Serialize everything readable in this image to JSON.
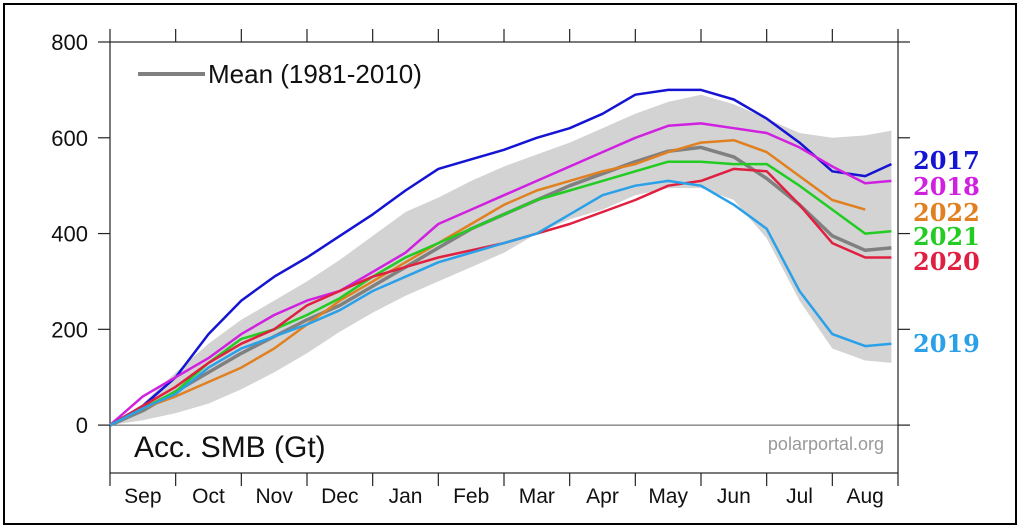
{
  "chart_data": {
    "type": "line",
    "ylabel": "Acc. SMB (Gt)",
    "credit": "polarportal.org",
    "ylim": [
      -100,
      800
    ],
    "y_ticks": [
      0,
      200,
      400,
      600,
      800
    ],
    "months": [
      "Sep",
      "Oct",
      "Nov",
      "Dec",
      "Jan",
      "Feb",
      "Mar",
      "Apr",
      "May",
      "Jun",
      "Jul",
      "Aug"
    ],
    "legend_position": "top-left",
    "mean": {
      "name": "Mean (1981-2010)",
      "color": "#808080",
      "points": [
        [
          0,
          0
        ],
        [
          0.5,
          30
        ],
        [
          1,
          70
        ],
        [
          1.5,
          110
        ],
        [
          2,
          150
        ],
        [
          2.5,
          185
        ],
        [
          3,
          220
        ],
        [
          3.5,
          250
        ],
        [
          4,
          290
        ],
        [
          4.5,
          330
        ],
        [
          5,
          370
        ],
        [
          5.5,
          410
        ],
        [
          6,
          440
        ],
        [
          6.5,
          470
        ],
        [
          7,
          500
        ],
        [
          7.5,
          525
        ],
        [
          8,
          550
        ],
        [
          8.5,
          572
        ],
        [
          9,
          580
        ],
        [
          9.5,
          560
        ],
        [
          10,
          515
        ],
        [
          10.5,
          460
        ],
        [
          11,
          395
        ],
        [
          11.5,
          365
        ],
        [
          11.9,
          370
        ]
      ]
    },
    "envelope": {
      "color": "#d3d3d3",
      "upper": [
        [
          0,
          0
        ],
        [
          0.5,
          45
        ],
        [
          1,
          110
        ],
        [
          1.5,
          170
        ],
        [
          2,
          220
        ],
        [
          2.5,
          260
        ],
        [
          3,
          300
        ],
        [
          3.5,
          345
        ],
        [
          4,
          395
        ],
        [
          4.5,
          445
        ],
        [
          5,
          475
        ],
        [
          5.5,
          510
        ],
        [
          6,
          540
        ],
        [
          6.5,
          565
        ],
        [
          7,
          590
        ],
        [
          7.5,
          620
        ],
        [
          8,
          650
        ],
        [
          8.5,
          675
        ],
        [
          9,
          690
        ],
        [
          9.5,
          670
        ],
        [
          10,
          640
        ],
        [
          10.5,
          610
        ],
        [
          11,
          600
        ],
        [
          11.5,
          605
        ],
        [
          11.9,
          615
        ]
      ],
      "lower": [
        [
          11.9,
          130
        ],
        [
          11.5,
          135
        ],
        [
          11,
          160
        ],
        [
          10.5,
          260
        ],
        [
          10,
          390
        ],
        [
          9.5,
          470
        ],
        [
          9,
          495
        ],
        [
          8.5,
          495
        ],
        [
          8,
          480
        ],
        [
          7.5,
          450
        ],
        [
          7,
          430
        ],
        [
          6.5,
          400
        ],
        [
          6,
          360
        ],
        [
          5.5,
          330
        ],
        [
          5,
          300
        ],
        [
          4.5,
          270
        ],
        [
          4,
          235
        ],
        [
          3.5,
          195
        ],
        [
          3,
          150
        ],
        [
          2.5,
          110
        ],
        [
          2,
          75
        ],
        [
          1.5,
          45
        ],
        [
          1,
          25
        ],
        [
          0.5,
          10
        ],
        [
          0,
          0
        ]
      ]
    },
    "series": [
      {
        "name": "2017",
        "color": "#1414d2",
        "points": [
          [
            0,
            0
          ],
          [
            0.5,
            40
          ],
          [
            1,
            100
          ],
          [
            1.5,
            190
          ],
          [
            2,
            260
          ],
          [
            2.5,
            310
          ],
          [
            3,
            350
          ],
          [
            3.5,
            395
          ],
          [
            4,
            440
          ],
          [
            4.5,
            490
          ],
          [
            5,
            535
          ],
          [
            5.5,
            555
          ],
          [
            6,
            575
          ],
          [
            6.5,
            600
          ],
          [
            7,
            620
          ],
          [
            7.5,
            650
          ],
          [
            8,
            690
          ],
          [
            8.5,
            700
          ],
          [
            9,
            700
          ],
          [
            9.5,
            680
          ],
          [
            10,
            640
          ],
          [
            10.5,
            590
          ],
          [
            11,
            530
          ],
          [
            11.5,
            520
          ],
          [
            11.9,
            545
          ]
        ]
      },
      {
        "name": "2018",
        "color": "#d020e0",
        "points": [
          [
            0,
            0
          ],
          [
            0.5,
            60
          ],
          [
            1,
            100
          ],
          [
            1.5,
            140
          ],
          [
            2,
            190
          ],
          [
            2.5,
            230
          ],
          [
            3,
            260
          ],
          [
            3.5,
            280
          ],
          [
            4,
            320
          ],
          [
            4.5,
            360
          ],
          [
            5,
            420
          ],
          [
            5.5,
            450
          ],
          [
            6,
            480
          ],
          [
            6.5,
            510
          ],
          [
            7,
            540
          ],
          [
            7.5,
            570
          ],
          [
            8,
            600
          ],
          [
            8.5,
            625
          ],
          [
            9,
            630
          ],
          [
            9.5,
            620
          ],
          [
            10,
            610
          ],
          [
            10.5,
            580
          ],
          [
            11,
            540
          ],
          [
            11.5,
            505
          ],
          [
            11.9,
            510
          ]
        ]
      },
      {
        "name": "2022",
        "color": "#e08020",
        "points": [
          [
            0,
            0
          ],
          [
            0.5,
            35
          ],
          [
            1,
            60
          ],
          [
            1.5,
            90
          ],
          [
            2,
            120
          ],
          [
            2.5,
            160
          ],
          [
            3,
            210
          ],
          [
            3.5,
            260
          ],
          [
            4,
            300
          ],
          [
            4.5,
            340
          ],
          [
            5,
            380
          ],
          [
            5.5,
            420
          ],
          [
            6,
            460
          ],
          [
            6.5,
            490
          ],
          [
            7,
            510
          ],
          [
            7.5,
            530
          ],
          [
            8,
            545
          ],
          [
            8.5,
            570
          ],
          [
            9,
            590
          ],
          [
            9.5,
            595
          ],
          [
            10,
            570
          ],
          [
            10.5,
            520
          ],
          [
            11,
            470
          ],
          [
            11.5,
            450
          ]
        ]
      },
      {
        "name": "2021",
        "color": "#22cc22",
        "points": [
          [
            0,
            0
          ],
          [
            0.5,
            35
          ],
          [
            1,
            70
          ],
          [
            1.5,
            130
          ],
          [
            2,
            180
          ],
          [
            2.5,
            200
          ],
          [
            3,
            230
          ],
          [
            3.5,
            265
          ],
          [
            4,
            310
          ],
          [
            4.5,
            350
          ],
          [
            5,
            380
          ],
          [
            5.5,
            410
          ],
          [
            6,
            440
          ],
          [
            6.5,
            470
          ],
          [
            7,
            490
          ],
          [
            7.5,
            510
          ],
          [
            8,
            530
          ],
          [
            8.5,
            550
          ],
          [
            9,
            550
          ],
          [
            9.5,
            545
          ],
          [
            10,
            545
          ],
          [
            10.5,
            500
          ],
          [
            11,
            450
          ],
          [
            11.5,
            400
          ],
          [
            11.9,
            405
          ]
        ]
      },
      {
        "name": "2020",
        "color": "#e02040",
        "points": [
          [
            0,
            0
          ],
          [
            0.5,
            40
          ],
          [
            1,
            80
          ],
          [
            1.5,
            130
          ],
          [
            2,
            170
          ],
          [
            2.5,
            200
          ],
          [
            3,
            250
          ],
          [
            3.5,
            280
          ],
          [
            4,
            310
          ],
          [
            4.5,
            330
          ],
          [
            5,
            350
          ],
          [
            5.5,
            365
          ],
          [
            6,
            380
          ],
          [
            6.5,
            400
          ],
          [
            7,
            420
          ],
          [
            7.5,
            445
          ],
          [
            8,
            470
          ],
          [
            8.5,
            500
          ],
          [
            9,
            510
          ],
          [
            9.5,
            535
          ],
          [
            10,
            530
          ],
          [
            10.5,
            460
          ],
          [
            11,
            380
          ],
          [
            11.5,
            350
          ],
          [
            11.9,
            350
          ]
        ]
      },
      {
        "name": "2019",
        "color": "#2aa0e8",
        "points": [
          [
            0,
            0
          ],
          [
            0.5,
            35
          ],
          [
            1,
            65
          ],
          [
            1.5,
            120
          ],
          [
            2,
            160
          ],
          [
            2.5,
            185
          ],
          [
            3,
            210
          ],
          [
            3.5,
            240
          ],
          [
            4,
            280
          ],
          [
            4.5,
            310
          ],
          [
            5,
            340
          ],
          [
            5.5,
            360
          ],
          [
            6,
            380
          ],
          [
            6.5,
            400
          ],
          [
            7,
            440
          ],
          [
            7.5,
            480
          ],
          [
            8,
            500
          ],
          [
            8.5,
            510
          ],
          [
            9,
            500
          ],
          [
            9.5,
            460
          ],
          [
            10,
            410
          ],
          [
            10.5,
            280
          ],
          [
            11,
            190
          ],
          [
            11.5,
            165
          ],
          [
            11.9,
            170
          ]
        ]
      }
    ]
  }
}
